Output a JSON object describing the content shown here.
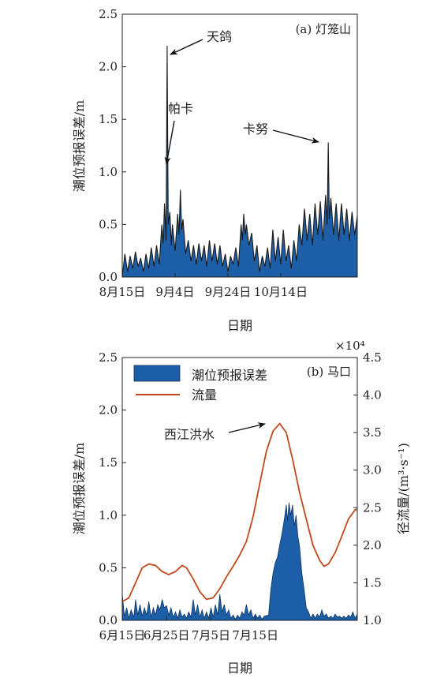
{
  "chart_data": [
    {
      "type": "area",
      "panel_label": "(a) 灯笼山",
      "xlabel": "日期",
      "ylabel": "潮位预报误差/m",
      "ylim": [
        0,
        2.5
      ],
      "yticks": [
        "0.0",
        "0.5",
        "1.0",
        "1.5",
        "2.0",
        "2.5"
      ],
      "xticks": [
        "8月15日",
        "9月4日",
        "9月24日",
        "10月14日"
      ],
      "grid": false,
      "fill_color": "#1c5fa8",
      "line_color": "#1a1a1a",
      "series": [
        {
          "values": [
            [
              0.0,
              0.0
            ],
            [
              1.0,
              0.22
            ],
            [
              2.0,
              0.05
            ],
            [
              3.0,
              0.2
            ],
            [
              4.0,
              0.08
            ],
            [
              5.0,
              0.24
            ],
            [
              6.0,
              0.1
            ],
            [
              7.0,
              0.18
            ],
            [
              8.0,
              0.05
            ],
            [
              9.0,
              0.22
            ],
            [
              10.0,
              0.08
            ],
            [
              11.0,
              0.28
            ],
            [
              12.0,
              0.1
            ],
            [
              13.0,
              0.3
            ],
            [
              14.0,
              0.12
            ],
            [
              15.0,
              0.5
            ],
            [
              15.5,
              0.32
            ],
            [
              16.0,
              0.7
            ],
            [
              16.6,
              0.35
            ],
            [
              17.0,
              2.2
            ],
            [
              17.4,
              0.5
            ],
            [
              18.0,
              0.62
            ],
            [
              18.6,
              0.3
            ],
            [
              19.0,
              0.5
            ],
            [
              20.0,
              0.25
            ],
            [
              21.0,
              0.6
            ],
            [
              21.5,
              0.4
            ],
            [
              22.0,
              0.83
            ],
            [
              22.5,
              0.45
            ],
            [
              23.0,
              0.55
            ],
            [
              24.0,
              0.22
            ],
            [
              25.0,
              0.35
            ],
            [
              26.0,
              0.15
            ],
            [
              27.0,
              0.3
            ],
            [
              28.0,
              0.12
            ],
            [
              29.0,
              0.32
            ],
            [
              30.0,
              0.15
            ],
            [
              31.0,
              0.3
            ],
            [
              32.0,
              0.1
            ],
            [
              33.0,
              0.35
            ],
            [
              34.0,
              0.15
            ],
            [
              35.0,
              0.32
            ],
            [
              36.0,
              0.12
            ],
            [
              37.0,
              0.3
            ],
            [
              38.0,
              0.1
            ],
            [
              39.0,
              0.22
            ],
            [
              40.0,
              0.05
            ],
            [
              41.0,
              0.2
            ],
            [
              42.0,
              0.12
            ],
            [
              43.0,
              0.28
            ],
            [
              44.0,
              0.1
            ],
            [
              45.0,
              0.5
            ],
            [
              45.5,
              0.35
            ],
            [
              46.0,
              0.6
            ],
            [
              46.6,
              0.4
            ],
            [
              47.0,
              0.5
            ],
            [
              48.0,
              0.3
            ],
            [
              49.0,
              0.42
            ],
            [
              50.0,
              0.15
            ],
            [
              51.0,
              0.3
            ],
            [
              52.0,
              0.05
            ],
            [
              53.0,
              0.2
            ],
            [
              54.0,
              0.1
            ],
            [
              55.0,
              0.28
            ],
            [
              56.0,
              0.08
            ],
            [
              57.0,
              0.45
            ],
            [
              58.0,
              0.15
            ],
            [
              59.0,
              0.38
            ],
            [
              60.0,
              0.12
            ],
            [
              61.0,
              0.45
            ],
            [
              62.0,
              0.15
            ],
            [
              63.0,
              0.3
            ],
            [
              64.0,
              0.08
            ],
            [
              65.0,
              0.35
            ],
            [
              66.0,
              0.15
            ],
            [
              67.0,
              0.5
            ],
            [
              68.0,
              0.3
            ],
            [
              69.0,
              0.65
            ],
            [
              70.0,
              0.35
            ],
            [
              71.0,
              0.6
            ],
            [
              72.0,
              0.3
            ],
            [
              73.0,
              0.7
            ],
            [
              74.0,
              0.4
            ],
            [
              75.0,
              0.72
            ],
            [
              76.0,
              0.35
            ],
            [
              77.0,
              0.78
            ],
            [
              77.6,
              0.5
            ],
            [
              78.0,
              1.28
            ],
            [
              78.4,
              0.55
            ],
            [
              79.0,
              0.75
            ],
            [
              80.0,
              0.4
            ],
            [
              81.0,
              0.7
            ],
            [
              82.0,
              0.35
            ],
            [
              83.0,
              0.7
            ],
            [
              84.0,
              0.4
            ],
            [
              85.0,
              0.65
            ],
            [
              86.0,
              0.35
            ],
            [
              87.0,
              0.62
            ],
            [
              88.0,
              0.4
            ],
            [
              89.0,
              0.58
            ]
          ]
        }
      ],
      "annotations": [
        {
          "text": "天鸽"
        },
        {
          "text": "帕卡"
        },
        {
          "text": "卡努"
        }
      ]
    },
    {
      "type": "area",
      "panel_label": "(b) 马口",
      "xlabel": "日期",
      "ylabel": "潮位预报误差/m",
      "ylabel_right": "径流量/(m³·s⁻¹)",
      "right_axis_multiplier": "×10⁴",
      "ylim": [
        0,
        2.5
      ],
      "ylim_right": [
        1.0,
        4.5
      ],
      "yticks": [
        "0.0",
        "0.5",
        "1.0",
        "1.5",
        "2.0",
        "2.5"
      ],
      "yticks_right": [
        "1.0",
        "1.5",
        "2.0",
        "2.5",
        "3.0",
        "3.5",
        "4.0",
        "4.5"
      ],
      "xticks": [
        "6月15日",
        "6月25日",
        "7月5日",
        "7月15日"
      ],
      "grid": false,
      "legend": {
        "position": "top-left",
        "error": "潮位预报误差",
        "flow": "流量"
      },
      "error_fill": "#1c5fa8",
      "flow_color": "#c0491c",
      "series": [
        {
          "name": "潮位预报误差",
          "values": [
            [
              0.0,
              0.25
            ],
            [
              0.5,
              0.04
            ],
            [
              1.0,
              0.12
            ],
            [
              1.5,
              0.02
            ],
            [
              2.0,
              0.1
            ],
            [
              2.6,
              0.03
            ],
            [
              3.0,
              0.2
            ],
            [
              3.5,
              0.05
            ],
            [
              4.0,
              0.15
            ],
            [
              4.5,
              0.04
            ],
            [
              5.0,
              0.12
            ],
            [
              5.5,
              0.05
            ],
            [
              6.0,
              0.18
            ],
            [
              6.5,
              0.03
            ],
            [
              7.0,
              0.12
            ],
            [
              7.5,
              0.05
            ],
            [
              8.0,
              0.15
            ],
            [
              8.5,
              0.1
            ],
            [
              9.0,
              0.2
            ],
            [
              9.5,
              0.12
            ],
            [
              10.0,
              0.14
            ],
            [
              10.5,
              0.05
            ],
            [
              11.0,
              0.12
            ],
            [
              11.5,
              0.03
            ],
            [
              12.0,
              0.08
            ],
            [
              12.5,
              0.02
            ],
            [
              13.0,
              0.1
            ],
            [
              13.5,
              0.03
            ],
            [
              14.0,
              0.06
            ],
            [
              14.5,
              0.02
            ],
            [
              15.0,
              0.08
            ],
            [
              15.5,
              0.03
            ],
            [
              16.0,
              0.2
            ],
            [
              16.5,
              0.05
            ],
            [
              17.0,
              0.15
            ],
            [
              17.5,
              0.03
            ],
            [
              18.0,
              0.1
            ],
            [
              18.5,
              0.02
            ],
            [
              19.0,
              0.08
            ],
            [
              19.5,
              0.02
            ],
            [
              20.0,
              0.12
            ],
            [
              20.5,
              0.03
            ],
            [
              21.0,
              0.15
            ],
            [
              21.5,
              0.05
            ],
            [
              22.0,
              0.25
            ],
            [
              22.5,
              0.08
            ],
            [
              23.0,
              0.15
            ],
            [
              23.5,
              0.05
            ],
            [
              24.0,
              0.1
            ],
            [
              24.5,
              0.02
            ],
            [
              25.0,
              0.05
            ],
            [
              25.5,
              0.01
            ],
            [
              26.0,
              0.05
            ],
            [
              26.5,
              0.02
            ],
            [
              27.0,
              0.08
            ],
            [
              27.5,
              0.05
            ],
            [
              28.0,
              0.15
            ],
            [
              28.5,
              0.05
            ],
            [
              29.0,
              0.1
            ],
            [
              29.5,
              0.02
            ],
            [
              30.0,
              0.06
            ],
            [
              30.5,
              0.02
            ],
            [
              31.0,
              0.05
            ],
            [
              31.5,
              0.01
            ],
            [
              32.0,
              0.04
            ],
            [
              33.0,
              0.05
            ],
            [
              33.5,
              0.3
            ],
            [
              34.0,
              0.45
            ],
            [
              34.5,
              0.55
            ],
            [
              35.0,
              0.6
            ],
            [
              35.5,
              0.72
            ],
            [
              36.0,
              0.82
            ],
            [
              36.5,
              0.95
            ],
            [
              37.0,
              1.1
            ],
            [
              37.3,
              0.95
            ],
            [
              37.6,
              1.12
            ],
            [
              38.0,
              1.0
            ],
            [
              38.4,
              1.1
            ],
            [
              38.8,
              0.9
            ],
            [
              39.2,
              1.0
            ],
            [
              39.6,
              0.8
            ],
            [
              40.0,
              0.7
            ],
            [
              40.5,
              0.45
            ],
            [
              41.0,
              0.3
            ],
            [
              41.5,
              0.12
            ],
            [
              42.0,
              0.08
            ],
            [
              42.5,
              0.02
            ],
            [
              43.0,
              0.06
            ],
            [
              43.5,
              0.02
            ],
            [
              44.0,
              0.06
            ],
            [
              44.5,
              0.03
            ],
            [
              45.0,
              0.1
            ],
            [
              45.5,
              0.04
            ],
            [
              46.0,
              0.06
            ],
            [
              46.5,
              0.02
            ],
            [
              47.0,
              0.04
            ],
            [
              47.5,
              0.02
            ],
            [
              48.0,
              0.06
            ],
            [
              48.5,
              0.03
            ],
            [
              49.0,
              0.04
            ],
            [
              49.5,
              0.02
            ],
            [
              50.0,
              0.04
            ],
            [
              50.5,
              0.02
            ],
            [
              51.0,
              0.05
            ],
            [
              51.5,
              0.03
            ],
            [
              52.0,
              0.08
            ],
            [
              52.5,
              0.02
            ],
            [
              53.0,
              0.06
            ]
          ]
        },
        {
          "name": "流量",
          "values": [
            [
              0.0,
              1.25
            ],
            [
              1.5,
              1.3
            ],
            [
              3.0,
              1.5
            ],
            [
              4.5,
              1.7
            ],
            [
              6.0,
              1.75
            ],
            [
              7.5,
              1.73
            ],
            [
              9.0,
              1.65
            ],
            [
              10.5,
              1.61
            ],
            [
              12.0,
              1.65
            ],
            [
              13.5,
              1.73
            ],
            [
              14.5,
              1.7
            ],
            [
              16.0,
              1.55
            ],
            [
              17.5,
              1.38
            ],
            [
              19.0,
              1.28
            ],
            [
              20.5,
              1.3
            ],
            [
              22.0,
              1.42
            ],
            [
              23.5,
              1.58
            ],
            [
              25.0,
              1.72
            ],
            [
              26.5,
              1.87
            ],
            [
              28.0,
              2.05
            ],
            [
              29.5,
              2.38
            ],
            [
              31.0,
              2.82
            ],
            [
              32.5,
              3.25
            ],
            [
              34.0,
              3.52
            ],
            [
              35.5,
              3.62
            ],
            [
              37.0,
              3.5
            ],
            [
              38.5,
              3.12
            ],
            [
              40.0,
              2.7
            ],
            [
              41.5,
              2.35
            ],
            [
              43.0,
              2.0
            ],
            [
              44.5,
              1.8
            ],
            [
              45.5,
              1.72
            ],
            [
              46.5,
              1.75
            ],
            [
              48.0,
              1.9
            ],
            [
              49.5,
              2.12
            ],
            [
              51.0,
              2.35
            ],
            [
              52.5,
              2.47
            ],
            [
              53.0,
              2.48
            ]
          ]
        }
      ],
      "annotations": [
        {
          "text": "西江洪水"
        }
      ]
    }
  ]
}
